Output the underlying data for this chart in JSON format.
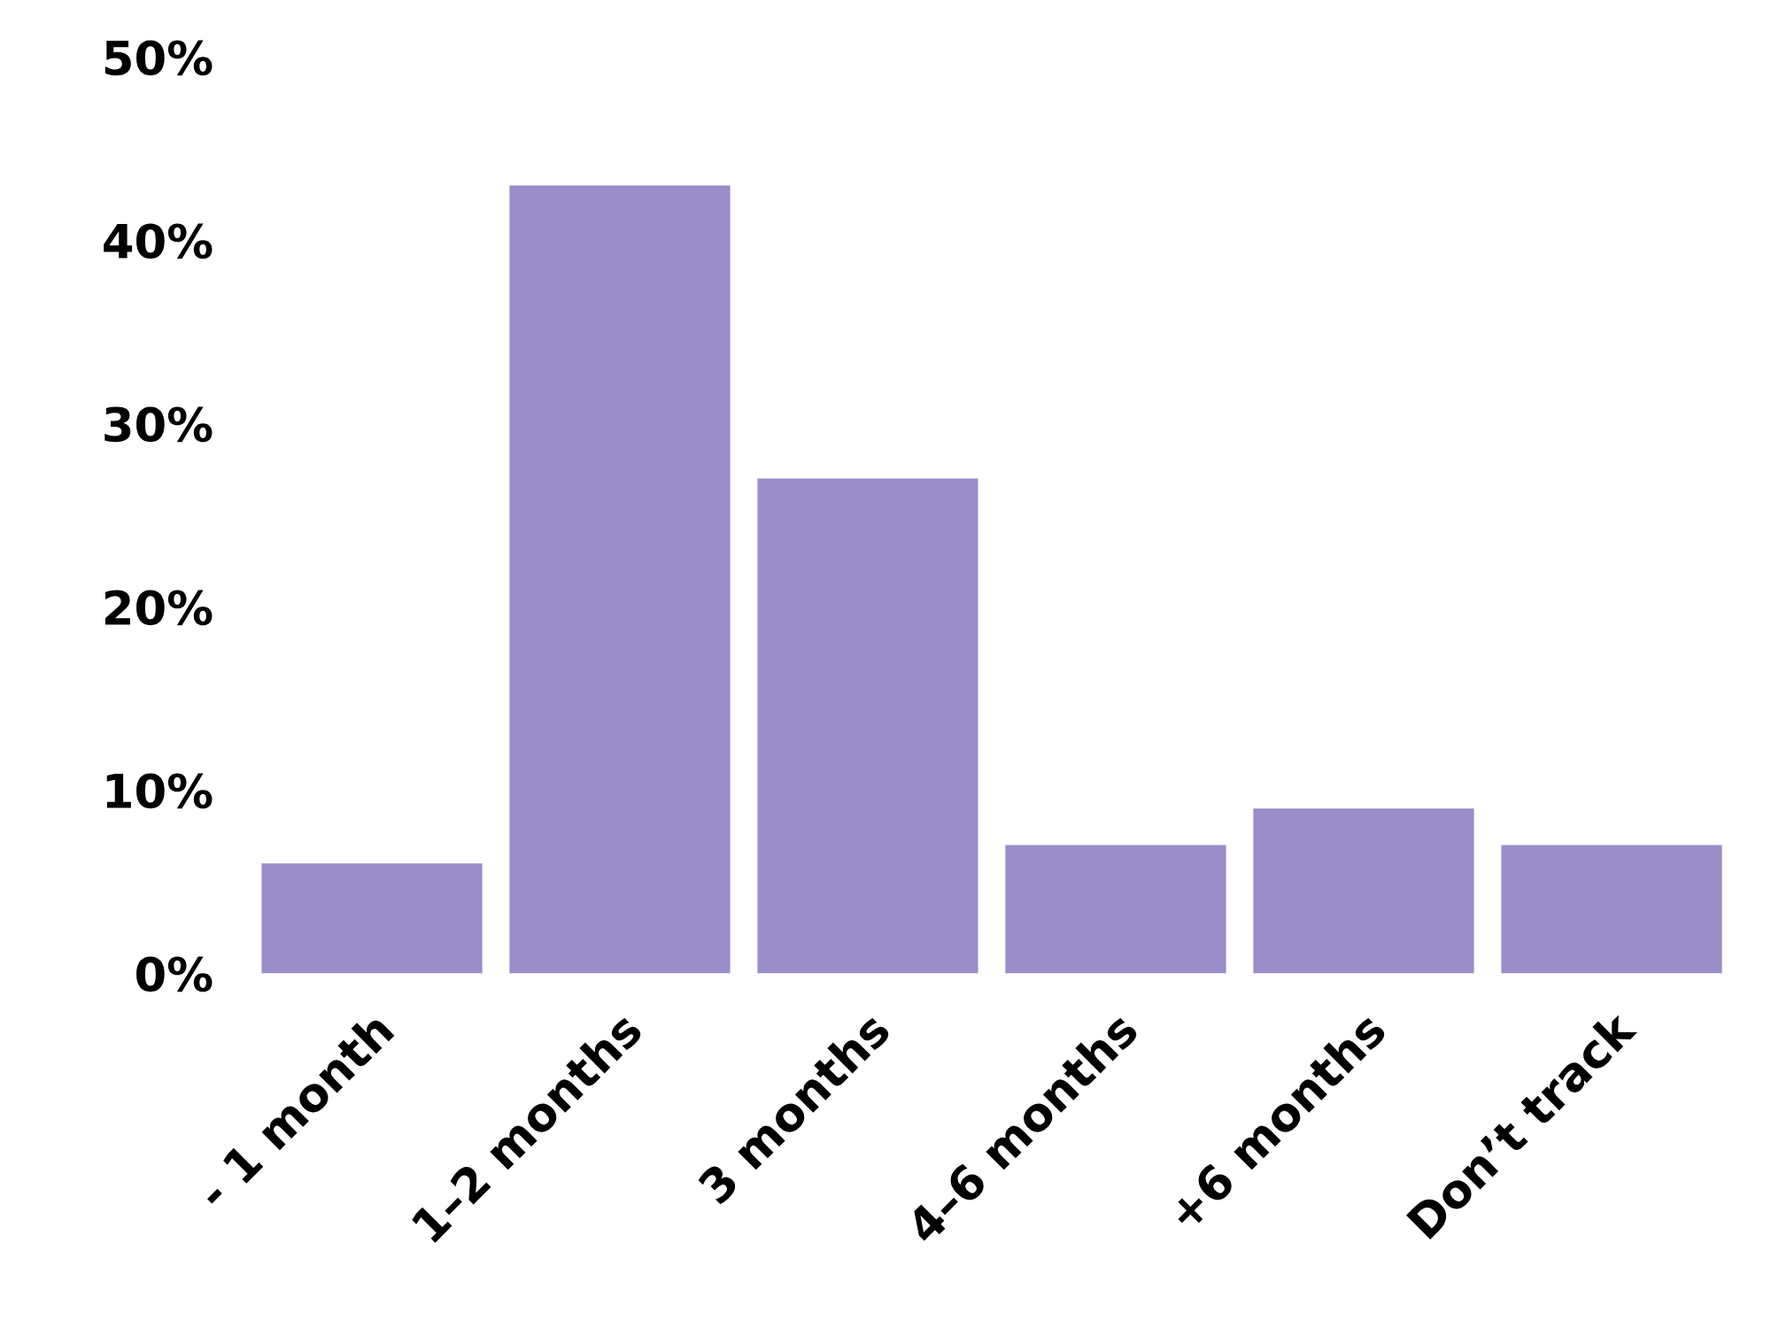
{
  "chart_data": {
    "type": "bar",
    "categories": [
      "- 1 month",
      "1–2 months",
      "3 months",
      "4–6 months",
      "+6 months",
      "Don’t track"
    ],
    "values": [
      6,
      43,
      27,
      7,
      9,
      7
    ],
    "color": "#9b8dc7",
    "ylim": [
      0,
      50
    ],
    "yticks": [
      {
        "value": 0,
        "label": "0%"
      },
      {
        "value": 10,
        "label": "10%"
      },
      {
        "value": 20,
        "label": "20%"
      },
      {
        "value": 30,
        "label": "30%"
      },
      {
        "value": 40,
        "label": "40%"
      },
      {
        "value": 50,
        "label": "50%"
      }
    ],
    "grid": false
  }
}
